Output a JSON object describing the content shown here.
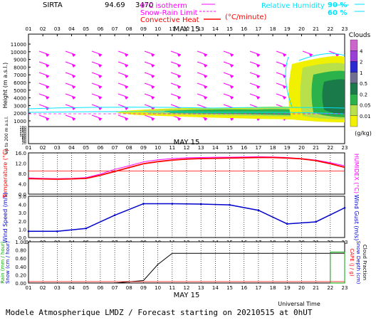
{
  "header": {
    "site": "SIRTA",
    "site_code": "94.69",
    "misc_number": "3470",
    "legend_isotherm": "0°C isotherm",
    "legend_snow_rain": "Snow-Rain Limit",
    "legend_convective": "Convective Heat",
    "legend_convective_unit": "(°C/minute)",
    "legend_rh": "Relative Humidity",
    "rh_90": "90 %",
    "rh_60": "60 %"
  },
  "footer": {
    "universal_time": "Universal Time",
    "model_line": "Modele Atmospherique LMDZ / Forecast starting on 20210515 at 0hUT"
  },
  "colors": {
    "magenta": "#ff00ff",
    "cyan": "#00e5ff",
    "red": "#ff0000",
    "blue": "#0000cc",
    "green": "#00aa00",
    "black": "#000000"
  },
  "chart_data": [
    {
      "type": "heatmap",
      "name": "clouds",
      "title": "MAY 15",
      "ylabel": "Height (m a.s.l.)",
      "ylabel_lower": "Up to 200 m a.s.l.",
      "x_hours": [
        "01",
        "02",
        "03",
        "04",
        "05",
        "06",
        "07",
        "08",
        "09",
        "10",
        "11",
        "12",
        "13",
        "14",
        "15",
        "16",
        "17",
        "18",
        "19",
        "20",
        "21",
        "22",
        "23"
      ],
      "y_ticks_upper": [
        "11000",
        "10000",
        "9000",
        "8000",
        "7000",
        "6000",
        "5000",
        "4000",
        "3000",
        "2000",
        "1000"
      ],
      "y_ticks_lower": [
        "180",
        "160",
        "140",
        "120",
        "100",
        "80",
        "60",
        "40",
        "20"
      ],
      "colorbar_title": "Clouds",
      "colorbar_unit": "(g/kg)",
      "colorbar_labels": [
        "4",
        "2",
        "1",
        "0.5",
        "0.2",
        "0.05",
        "0.01"
      ],
      "colorbar_colors": [
        "#cc66cc",
        "#9a3fd6",
        "#2a2ad0",
        "#6f6f8f",
        "#1a7a4a",
        "#2bb24a",
        "#b8e04a",
        "#f0f000"
      ],
      "isotherm_0C_m": [
        2000,
        2000,
        2000,
        2000,
        2000,
        2000,
        2000,
        2000,
        2000,
        2000,
        2000,
        2000,
        2000,
        2000,
        2000,
        2000,
        2000,
        2000,
        2000,
        2000,
        2000,
        2000,
        2000
      ]
    },
    {
      "type": "line",
      "name": "temperature",
      "title": "MAY 15",
      "ylabel": "Temperature (°C)",
      "ylabel_right": "HUMIDEX (°C)",
      "ylim": [
        0,
        16
      ],
      "y_ticks": [
        "16.0",
        "12.0",
        "8.0",
        "4.0",
        "0.0"
      ],
      "x": [
        1,
        2,
        3,
        4,
        5,
        6,
        7,
        8,
        9,
        10,
        11,
        12,
        13,
        14,
        15,
        16,
        17,
        18,
        19,
        20,
        21,
        22,
        23
      ],
      "series": [
        {
          "values": [
            6.0,
            5.9,
            5.8,
            5.9,
            6.1,
            7.3,
            8.8,
            10.3,
            11.8,
            12.6,
            13.2,
            13.6,
            13.8,
            13.9,
            14.0,
            14.1,
            14.2,
            14.2,
            14.0,
            13.7,
            13.0,
            11.8,
            10.4
          ]
        },
        {
          "values": [
            6.3,
            6.1,
            6.0,
            6.1,
            6.4,
            7.8,
            9.6,
            11.0,
            12.5,
            13.3,
            13.8,
            14.1,
            14.2,
            14.3,
            14.3,
            14.4,
            14.5,
            14.4,
            14.2,
            13.8,
            13.2,
            12.2,
            11.0
          ]
        }
      ],
      "reference_line": 9.0
    },
    {
      "type": "line",
      "name": "wind",
      "ylabel": "Wind Speed (m/s)",
      "ylabel_right": "Wind Gust (m/s)",
      "ylim": [
        0,
        5
      ],
      "y_ticks": [
        "5.0",
        "4.0",
        "3.0",
        "2.0",
        "1.0",
        "0.0"
      ],
      "x": [
        1,
        3,
        5,
        7,
        9,
        11,
        13,
        15,
        17,
        19,
        21,
        23
      ],
      "series": [
        {
          "values": [
            0.75,
            0.75,
            1.1,
            2.7,
            4.1,
            4.1,
            4.05,
            3.95,
            3.3,
            1.65,
            1.9,
            3.6
          ]
        }
      ]
    },
    {
      "type": "line",
      "name": "precipitation",
      "title": "MAY 15",
      "ylabel": "Rain (mm / hour)",
      "ylabel2": "Snow (cm / hour)",
      "ylabel_right": "CAPE (J / g)",
      "ylabel_right2": "Snow Depth (cm)",
      "ylabel_right3": "Cloud Fraction",
      "ylim": [
        0,
        1.0
      ],
      "y_ticks": [
        "1.00",
        "0.80",
        "0.60",
        "0.40",
        "0.20",
        "0.00"
      ],
      "x": [
        1,
        3,
        5,
        7,
        8,
        9,
        10,
        11,
        13,
        15,
        17,
        19,
        21,
        23
      ],
      "series": [
        {
          "values": [
            0.0,
            0.0,
            0.0,
            0.0,
            0.03,
            0.06,
            0.45,
            0.72,
            0.72,
            0.72,
            0.72,
            0.72,
            0.72,
            0.72
          ]
        }
      ],
      "cloud_fraction_hours": [
        22,
        23
      ],
      "cloud_fraction_value": 0.75
    }
  ]
}
